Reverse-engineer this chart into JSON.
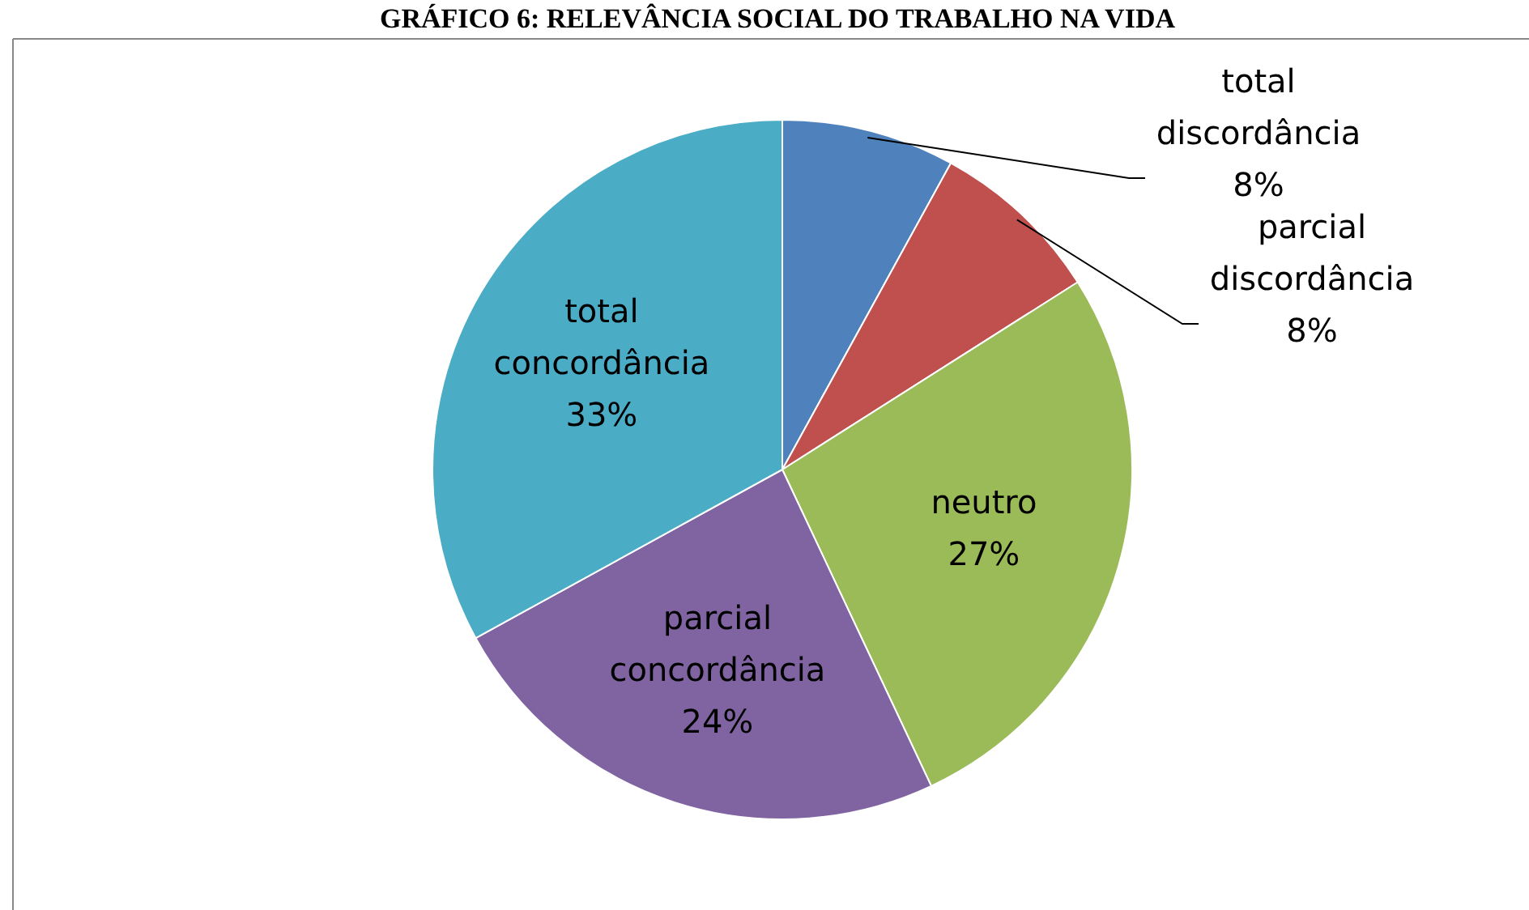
{
  "chart_data": {
    "type": "pie",
    "title": "GRÁFICO 6: RELEVÂNCIA SOCIAL DO TRABALHO NA VIDA",
    "categories": [
      "total discordância",
      "parcial discordância",
      "neutro",
      "parcial concordância",
      "total concordância"
    ],
    "values": [
      8,
      8,
      27,
      24,
      33
    ],
    "colors": [
      "#4f81bd",
      "#c0504d",
      "#9bbb59",
      "#8064a2",
      "#4bacc6"
    ],
    "value_labels": [
      "8%",
      "8%",
      "27%",
      "24%",
      "33%"
    ]
  }
}
